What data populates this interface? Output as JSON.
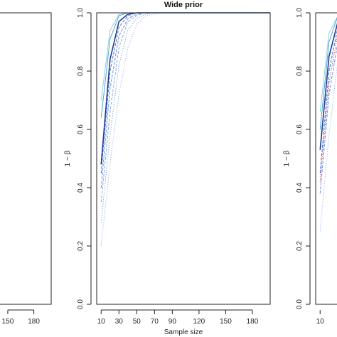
{
  "chart_data": [
    {
      "type": "line",
      "panel": "left-partial",
      "title": "",
      "xlabel": "",
      "ylabel": "",
      "xlim": [
        10,
        200
      ],
      "ylim": [
        0,
        1
      ],
      "x_ticks": [
        150,
        180
      ],
      "x_tick_labels": [
        "150",
        "180"
      ],
      "series": [
        {
          "color": "#7fc8e8",
          "dash": "solid",
          "x": [
            10,
            20,
            30,
            40,
            50,
            60,
            70,
            80,
            90,
            100,
            120,
            150,
            180,
            200
          ],
          "y": [
            1,
            1,
            1,
            1,
            1,
            1,
            1,
            1,
            1,
            1,
            1,
            1,
            1,
            1
          ]
        }
      ]
    },
    {
      "type": "line",
      "panel": "middle",
      "title": "Wide prior",
      "xlabel": "Sample size",
      "ylabel": "1 − β",
      "xlim": [
        5,
        200
      ],
      "ylim": [
        0,
        1
      ],
      "grid": false,
      "x_ticks": [
        10,
        30,
        50,
        70,
        90,
        120,
        150,
        180
      ],
      "x_tick_labels": [
        "10",
        "30",
        "50",
        "70",
        "90",
        "120",
        "150",
        "180"
      ],
      "y_ticks": [
        0.0,
        0.2,
        0.4,
        0.6,
        0.8,
        1.0
      ],
      "y_tick_labels": [
        "0.0",
        "0.2",
        "0.4",
        "0.6",
        "0.8",
        "1.0"
      ],
      "series": [
        {
          "color": "#8fd0e0",
          "dash": "solid",
          "x": [
            10,
            20,
            30,
            40,
            50,
            60,
            200
          ],
          "y": [
            0.7,
            0.94,
            0.995,
            1.0,
            1.0,
            1.0,
            1.0
          ]
        },
        {
          "color": "#4aa8d8",
          "dash": "solid",
          "x": [
            10,
            20,
            30,
            40,
            50,
            60,
            200
          ],
          "y": [
            0.64,
            0.91,
            0.99,
            1.0,
            1.0,
            1.0,
            1.0
          ]
        },
        {
          "color": "#1f3a93",
          "dash": "solid",
          "x": [
            10,
            20,
            30,
            40,
            50,
            60,
            200
          ],
          "y": [
            0.48,
            0.84,
            0.97,
            0.995,
            1.0,
            1.0,
            1.0
          ]
        },
        {
          "color": "#3f6fd0",
          "dash": "dashed",
          "x": [
            10,
            20,
            30,
            40,
            50,
            60,
            70,
            200
          ],
          "y": [
            0.45,
            0.8,
            0.95,
            0.99,
            1.0,
            1.0,
            1.0,
            1.0
          ]
        },
        {
          "color": "#6a8fe0",
          "dash": "dashed",
          "x": [
            10,
            20,
            30,
            40,
            50,
            60,
            70,
            200
          ],
          "y": [
            0.4,
            0.74,
            0.92,
            0.98,
            0.995,
            1.0,
            1.0,
            1.0
          ]
        },
        {
          "color": "#8aa8e8",
          "dash": "dashed",
          "x": [
            10,
            20,
            30,
            40,
            50,
            60,
            70,
            200
          ],
          "y": [
            0.35,
            0.66,
            0.88,
            0.97,
            0.99,
            1.0,
            1.0,
            1.0
          ]
        },
        {
          "color": "#7a9be0",
          "dash": "dotted",
          "x": [
            10,
            20,
            30,
            40,
            50,
            60,
            70,
            80,
            200
          ],
          "y": [
            0.28,
            0.58,
            0.82,
            0.94,
            0.98,
            0.995,
            1.0,
            1.0,
            1.0
          ]
        },
        {
          "color": "#9ab4ec",
          "dash": "dotted",
          "x": [
            10,
            20,
            30,
            40,
            50,
            60,
            70,
            80,
            90,
            200
          ],
          "y": [
            0.2,
            0.48,
            0.72,
            0.88,
            0.96,
            0.99,
            0.995,
            1.0,
            1.0,
            1.0
          ]
        }
      ]
    },
    {
      "type": "line",
      "panel": "right-partial",
      "title": "",
      "xlabel": "",
      "ylabel": "1 − β",
      "xlim": [
        5,
        200
      ],
      "ylim": [
        0,
        1
      ],
      "x_ticks": [
        10
      ],
      "x_tick_labels": [
        "10"
      ],
      "y_ticks": [
        0.0,
        0.2,
        0.4,
        0.6,
        0.8,
        1.0
      ],
      "y_tick_labels": [
        "0.0",
        "0.2",
        "0.4",
        "0.6",
        "0.8",
        "1.0"
      ],
      "series": [
        {
          "color": "#8fd0e0",
          "dash": "solid",
          "x": [
            10,
            20,
            30
          ],
          "y": [
            0.66,
            0.93,
            0.99
          ]
        },
        {
          "color": "#4aa8d8",
          "dash": "solid",
          "x": [
            10,
            20,
            30
          ],
          "y": [
            0.6,
            0.9,
            0.99
          ]
        },
        {
          "color": "#1f3a93",
          "dash": "solid",
          "x": [
            10,
            20,
            30
          ],
          "y": [
            0.53,
            0.85,
            0.97
          ]
        },
        {
          "color": "#3f6fd0",
          "dash": "dashed",
          "x": [
            10,
            20,
            30
          ],
          "y": [
            0.45,
            0.8,
            0.95
          ]
        },
        {
          "color": "#b03a5a",
          "dash": "dotted",
          "x": [
            10,
            20,
            30
          ],
          "y": [
            0.42,
            0.76,
            0.93
          ]
        },
        {
          "color": "#6a8fe0",
          "dash": "dashed",
          "x": [
            10,
            20,
            30
          ],
          "y": [
            0.38,
            0.72,
            0.9
          ]
        },
        {
          "color": "#9ab4ec",
          "dash": "dotted",
          "x": [
            10,
            20,
            30
          ],
          "y": [
            0.25,
            0.58,
            0.84
          ]
        }
      ]
    }
  ]
}
